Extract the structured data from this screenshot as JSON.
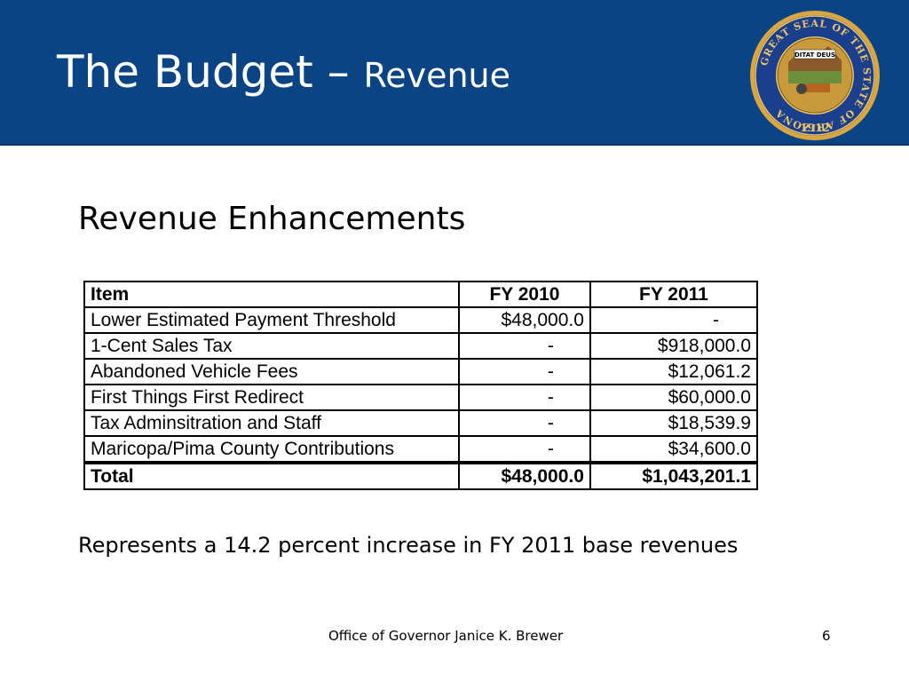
{
  "slide": {
    "title_main": "The Budget",
    "title_dash": " – ",
    "title_sub": "Revenue",
    "subtitle": "Revenue Enhancements",
    "note": "Represents a 14.2 percent increase in FY 2011 base revenues",
    "footer": "Office of Governor Janice K. Brewer",
    "page_number": "6"
  },
  "seal": {
    "motto": "DITAT DEUS",
    "year": "1912",
    "ring_text": "GREAT SEAL OF THE STATE OF ARIZONA",
    "colors": {
      "ring": "#1a3f8c",
      "gold": "#d9a640",
      "inner": "#c99a3b"
    }
  },
  "table": {
    "headers": {
      "item": "Item",
      "fy2010": "FY 2010",
      "fy2011": "FY 2011"
    },
    "rows": [
      {
        "item": "Lower Estimated Payment Threshold",
        "fy2010": "$48,000.0",
        "fy2011": "-"
      },
      {
        "item": "1-Cent Sales Tax",
        "fy2010": "-",
        "fy2011": "$918,000.0"
      },
      {
        "item": "Abandoned Vehicle Fees",
        "fy2010": "-",
        "fy2011": "$12,061.2"
      },
      {
        "item": "First Things First Redirect",
        "fy2010": "-",
        "fy2011": "$60,000.0"
      },
      {
        "item": "Tax Adminsitration and Staff",
        "fy2010": "-",
        "fy2011": "$18,539.9"
      },
      {
        "item": "Maricopa/Pima County Contributions",
        "fy2010": "-",
        "fy2011": "$34,600.0"
      }
    ],
    "total": {
      "item": "Total",
      "fy2010": "$48,000.0",
      "fy2011": "$1,043,201.1"
    }
  },
  "colors": {
    "header_bg": "#0b4485",
    "title_text": "#ffffff"
  }
}
